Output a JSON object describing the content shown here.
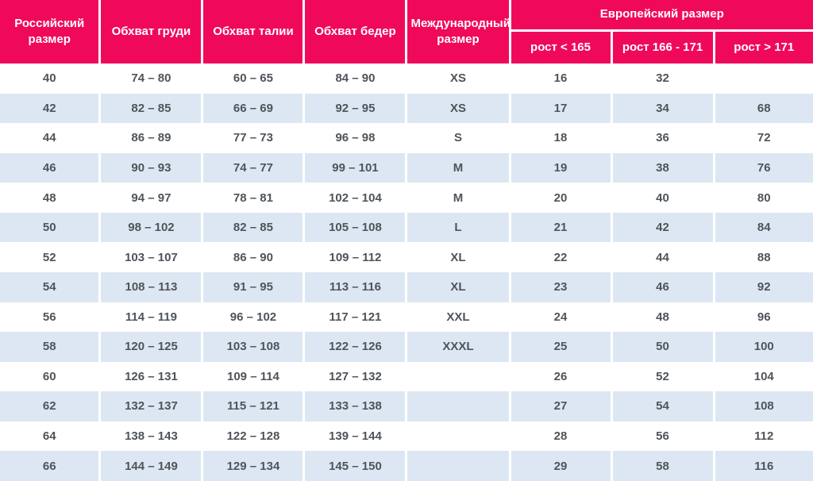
{
  "colors": {
    "header_bg": "#f0095b",
    "header_text": "#ffffff",
    "row_alt_bg": "#dde7f3",
    "row_bg": "#ffffff",
    "cell_text": "#4f545a"
  },
  "table": {
    "headers": {
      "russian_size": "Российский размер",
      "chest": "Обхват груди",
      "waist": "Обхват талии",
      "hips": "Обхват бедер",
      "international_size": "Международный размер",
      "european_size": "Европейский размер",
      "height_lt_165": "рост < 165",
      "height_166_171": "рост 166 - 171",
      "height_gt_171": "рост > 171"
    },
    "rows": [
      [
        "40",
        "74 – 80",
        "60 – 65",
        "84 – 90",
        "XS",
        "16",
        "32",
        ""
      ],
      [
        "42",
        "82 – 85",
        "66 – 69",
        "92 – 95",
        "XS",
        "17",
        "34",
        "68"
      ],
      [
        "44",
        "86 – 89",
        "77 – 73",
        "96 – 98",
        "S",
        "18",
        "36",
        "72"
      ],
      [
        "46",
        "90 – 93",
        "74 – 77",
        "99 – 101",
        "M",
        "19",
        "38",
        "76"
      ],
      [
        "48",
        "94 – 97",
        "78 – 81",
        "102 – 104",
        "M",
        "20",
        "40",
        "80"
      ],
      [
        "50",
        "98 – 102",
        "82 – 85",
        "105 – 108",
        "L",
        "21",
        "42",
        "84"
      ],
      [
        "52",
        "103 – 107",
        "86 – 90",
        "109 – 112",
        "XL",
        "22",
        "44",
        "88"
      ],
      [
        "54",
        "108 – 113",
        "91 – 95",
        "113 – 116",
        "XL",
        "23",
        "46",
        "92"
      ],
      [
        "56",
        "114 – 119",
        "96 – 102",
        "117 – 121",
        "XXL",
        "24",
        "48",
        "96"
      ],
      [
        "58",
        "120 – 125",
        "103 – 108",
        "122 – 126",
        "XXXL",
        "25",
        "50",
        "100"
      ],
      [
        "60",
        "126 – 131",
        "109 – 114",
        "127 – 132",
        "",
        "26",
        "52",
        "104"
      ],
      [
        "62",
        "132 – 137",
        "115 – 121",
        "133 – 138",
        "",
        "27",
        "54",
        "108"
      ],
      [
        "64",
        "138 – 143",
        "122 – 128",
        "139 – 144",
        "",
        "28",
        "56",
        "112"
      ],
      [
        "66",
        "144 – 149",
        "129 – 134",
        "145 – 150",
        "",
        "29",
        "58",
        "116"
      ]
    ]
  }
}
